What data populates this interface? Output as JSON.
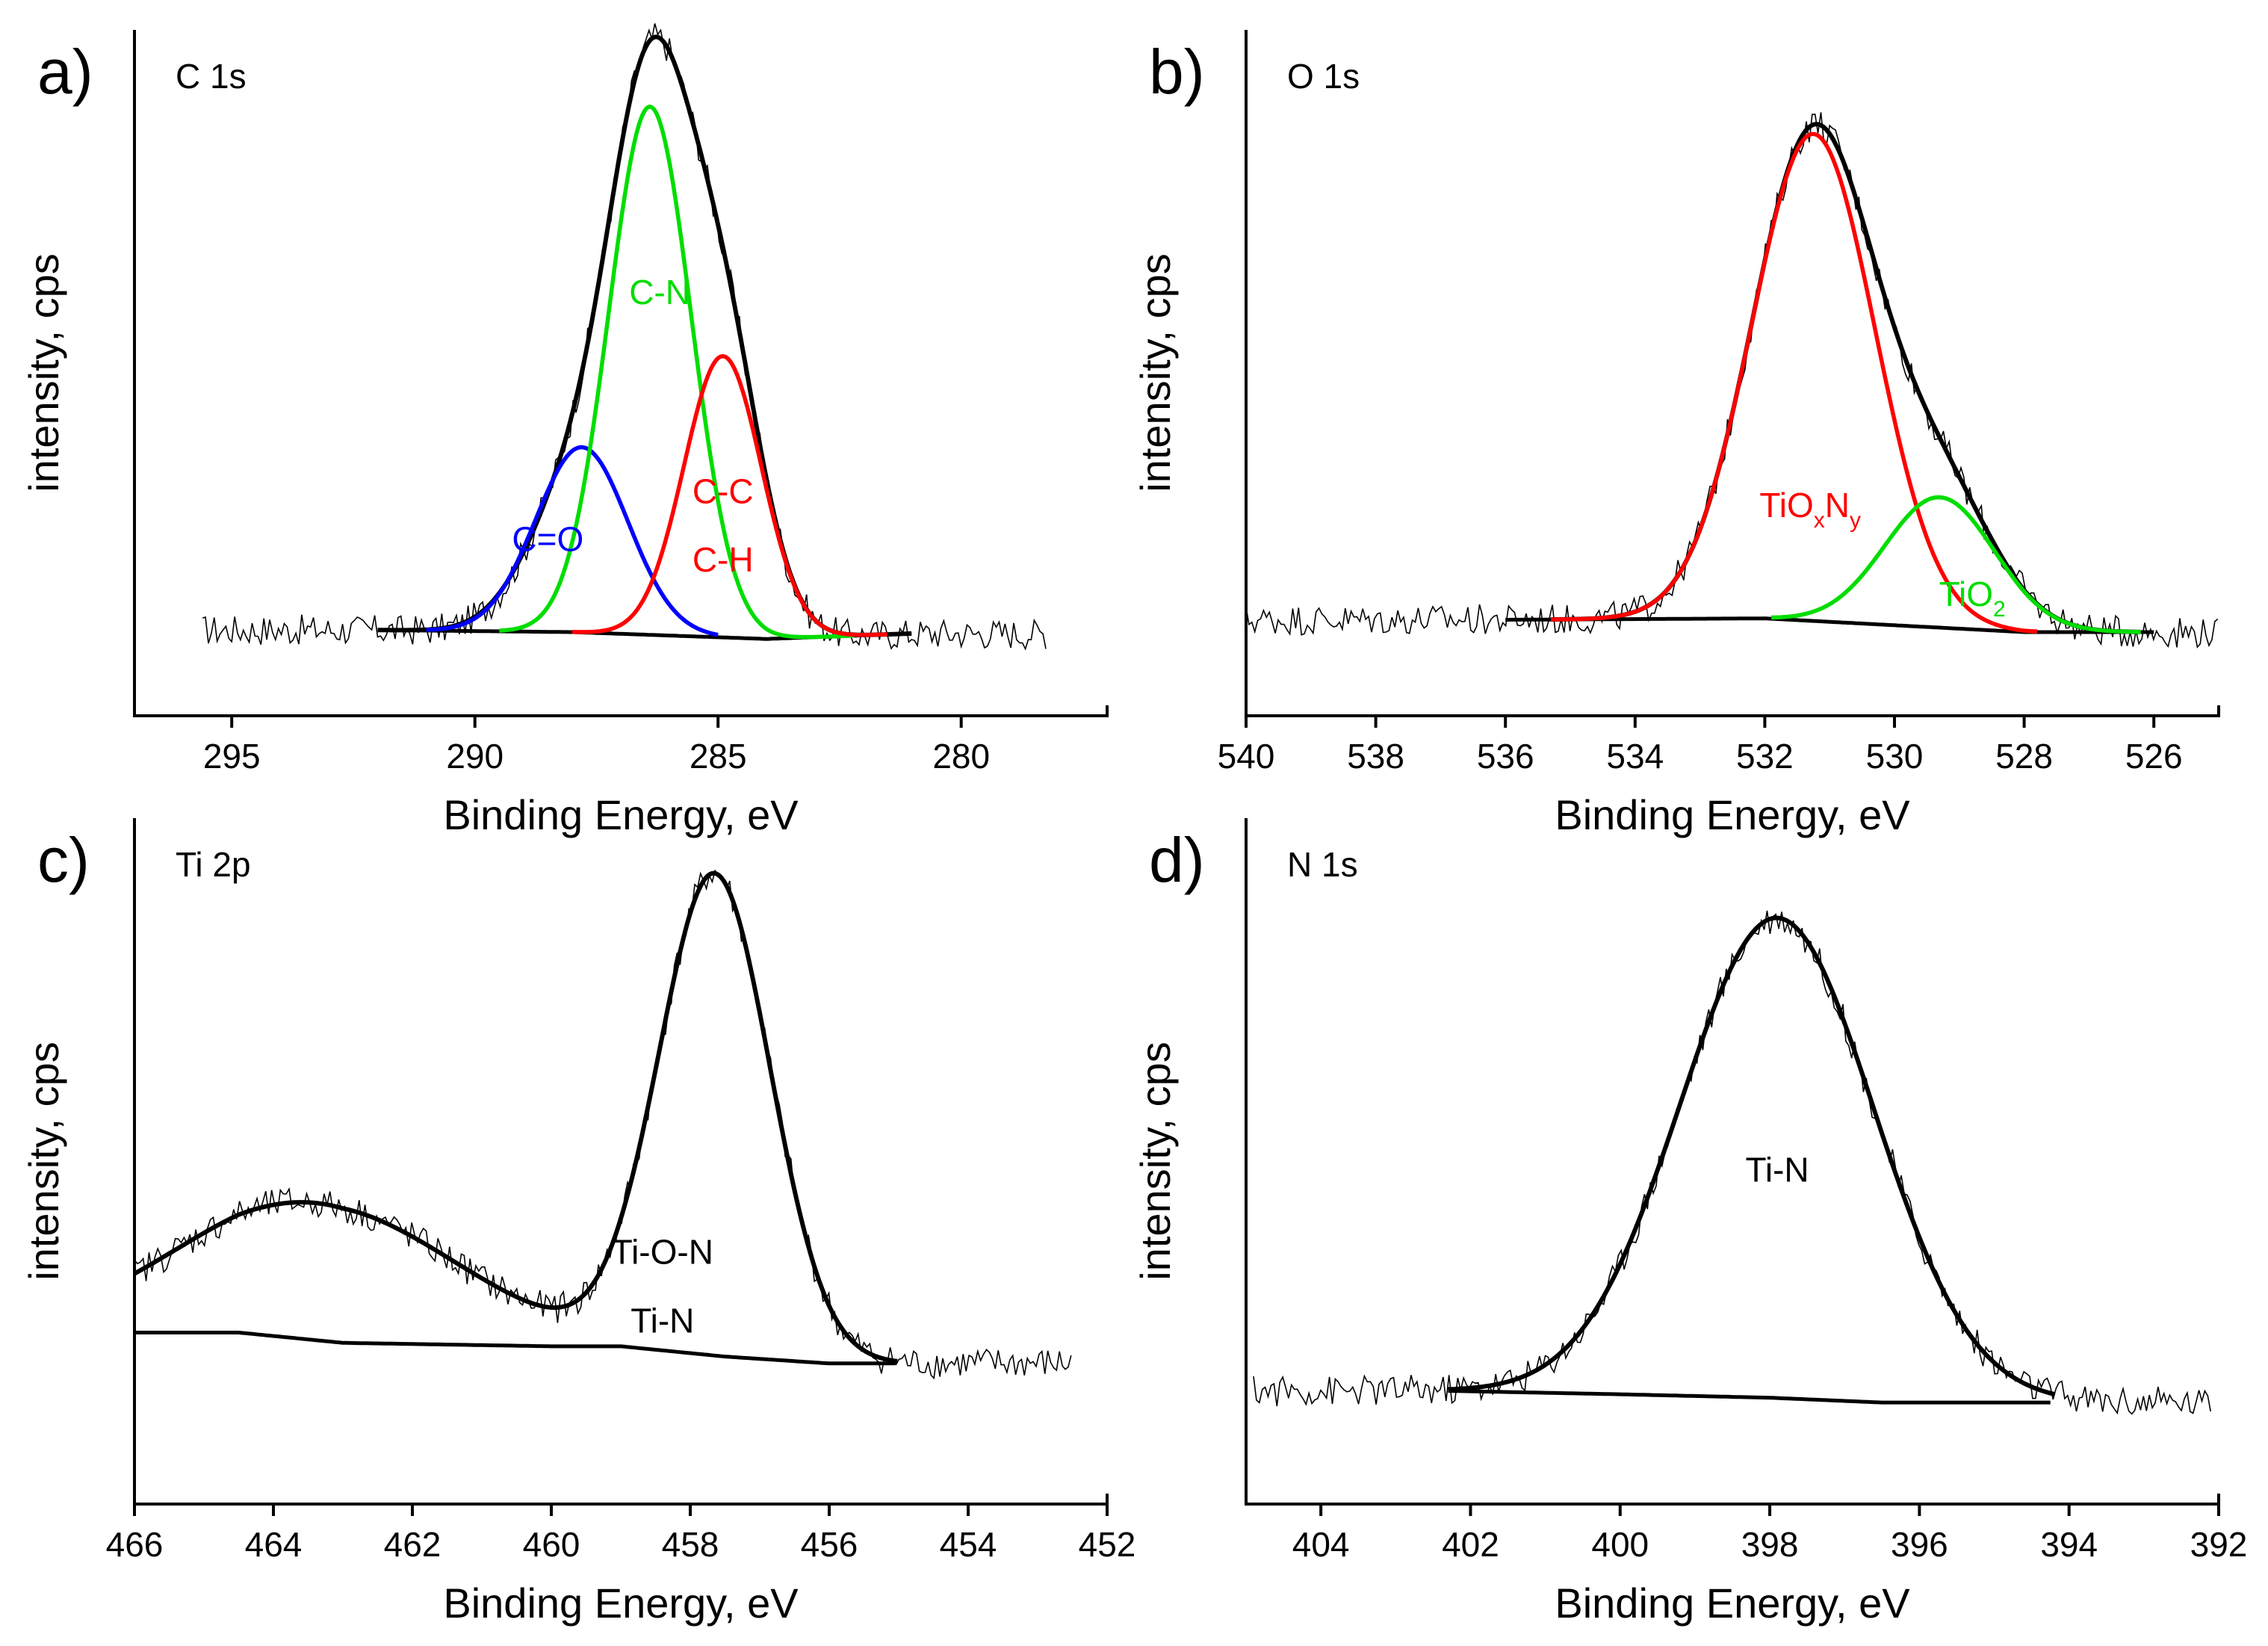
{
  "chart_data": [
    {
      "panel": "a)",
      "type": "line",
      "title": "C 1s",
      "xlabel": "Binding Energy, eV",
      "ylabel": "intensity, cps",
      "xlim": [
        297,
        277
      ],
      "ylim": [
        0,
        1
      ],
      "x_reversed": true,
      "xticks": [
        295,
        290,
        285,
        280
      ],
      "raw_range": [
        295.6,
        278.2
      ],
      "baseline": [
        [
          292,
          0.125
        ],
        [
          288,
          0.122
        ],
        [
          286,
          0.117
        ],
        [
          284,
          0.112
        ],
        [
          281,
          0.12
        ]
      ],
      "series": [
        {
          "name": "envelope",
          "color": "#000000",
          "range": [
            292,
            281
          ],
          "peaks": [
            [
              288,
              0.19,
              0.95
            ],
            [
              286.4,
              0.75,
              0.85
            ],
            [
              284.9,
              0.41,
              0.8
            ]
          ]
        },
        {
          "name": "C=O",
          "label": "C=O",
          "color": "#0000ff",
          "range": [
            291,
            285
          ],
          "peaks": [
            [
              287.8,
              0.27,
              0.95
            ]
          ]
        },
        {
          "name": "C-N",
          "label": "C-N",
          "color": "#00dd00",
          "range": [
            289.5,
            282.2
          ],
          "peaks": [
            [
              286.4,
              0.77,
              0.85
            ]
          ]
        },
        {
          "name": "C-C / C-H",
          "label": [
            "C-C",
            "C-H"
          ],
          "color": "#ff0000",
          "range": [
            288,
            281.5
          ],
          "peaks": [
            [
              284.9,
              0.41,
              0.8
            ]
          ]
        }
      ],
      "annotations": [
        {
          "text": "C-N",
          "x": 286.2,
          "y": 0.6,
          "color": "#00dd00"
        },
        {
          "text": "C=O",
          "x": 288.5,
          "y": 0.24,
          "color": "#0000ff"
        },
        {
          "text": "C-C",
          "x": 284.9,
          "y": 0.31,
          "color": "#ff0000"
        },
        {
          "text": "C-H",
          "x": 284.9,
          "y": 0.21,
          "color": "#ff0000"
        }
      ]
    },
    {
      "panel": "b)",
      "type": "line",
      "title": "O 1s",
      "xlabel": "Binding Energy, eV",
      "ylabel": "intensity, cps",
      "xlim": [
        540,
        525
      ],
      "ylim": [
        0,
        1
      ],
      "x_reversed": true,
      "xticks": [
        540,
        538,
        536,
        534,
        532,
        530,
        528,
        526
      ],
      "raw_range": [
        540,
        525
      ],
      "baseline": [
        [
          536,
          0.14
        ],
        [
          532,
          0.142
        ],
        [
          530,
          0.132
        ],
        [
          528,
          0.122
        ],
        [
          526,
          0.122
        ]
      ],
      "series": [
        {
          "name": "envelope",
          "color": "#000000",
          "range": [
            535.3,
            526.2
          ],
          "peaks": [
            [
              531.25,
              0.71,
              0.95
            ],
            [
              529.3,
              0.19,
              0.85
            ]
          ]
        },
        {
          "name": "TiOxNy",
          "label": "TiOxNy",
          "color": "#ff0000",
          "range": [
            535.3,
            527.8
          ],
          "peaks": [
            [
              531.25,
              0.71,
              0.95
            ]
          ]
        },
        {
          "name": "TiO2",
          "label": "TiO2",
          "color": "#00dd00",
          "range": [
            531.9,
            526.2
          ],
          "peaks": [
            [
              529.3,
              0.19,
              0.85
            ]
          ]
        }
      ],
      "annotations": [
        {
          "text": "TiOxNy",
          "x": 531.3,
          "y": 0.29,
          "color": "#ff0000"
        },
        {
          "text": "TiO2",
          "x": 528.8,
          "y": 0.16,
          "color": "#00dd00"
        }
      ]
    },
    {
      "panel": "c)",
      "type": "line",
      "title": "Ti 2p",
      "xlabel": "Binding Energy, eV",
      "ylabel": "intensity, cps",
      "xlim": [
        466,
        452
      ],
      "ylim": [
        0,
        1
      ],
      "x_reversed": true,
      "xticks": [
        466,
        464,
        462,
        460,
        458,
        456,
        454,
        452
      ],
      "raw_range": [
        466,
        452.5
      ],
      "baseline": [
        [
          466,
          0.25
        ],
        [
          464.5,
          0.25
        ],
        [
          463,
          0.235
        ],
        [
          460,
          0.23
        ],
        [
          459,
          0.23
        ],
        [
          457.5,
          0.215
        ],
        [
          456,
          0.205
        ],
        [
          455,
          0.205
        ]
      ],
      "series": [
        {
          "name": "envelope",
          "color": "#000000",
          "range": [
            466,
            455
          ],
          "peaks": [
            [
              463.4,
              0.2,
              2.0
            ],
            [
              457.65,
              0.7,
              0.8
            ]
          ]
        }
      ],
      "annotations": [
        {
          "text": "Ti-O-N",
          "x": 458.4,
          "y": 0.35
        },
        {
          "text": "Ti-N",
          "x": 458.4,
          "y": 0.25
        }
      ]
    },
    {
      "panel": "d)",
      "type": "line",
      "title": "N 1s",
      "xlabel": "Binding Energy, eV",
      "ylabel": "intensity, cps",
      "xlim": [
        405,
        392
      ],
      "ylim": [
        0,
        1
      ],
      "x_reversed": true,
      "xticks": [
        404,
        402,
        400,
        398,
        396,
        394,
        392
      ],
      "raw_range": [
        404.9,
        392.1
      ],
      "baseline": [
        [
          402.3,
          0.165
        ],
        [
          400,
          0.16
        ],
        [
          398,
          0.155
        ],
        [
          396.5,
          0.148
        ],
        [
          394.2,
          0.148
        ]
      ],
      "series": [
        {
          "name": "envelope",
          "color": "#000000",
          "range": [
            402.3,
            394.2
          ],
          "peaks": [
            [
              397.9,
              0.7,
              1.3
            ]
          ]
        }
      ],
      "annotations": [
        {
          "text": "Ti-N",
          "x": 397.9,
          "y": 0.47
        }
      ]
    }
  ]
}
